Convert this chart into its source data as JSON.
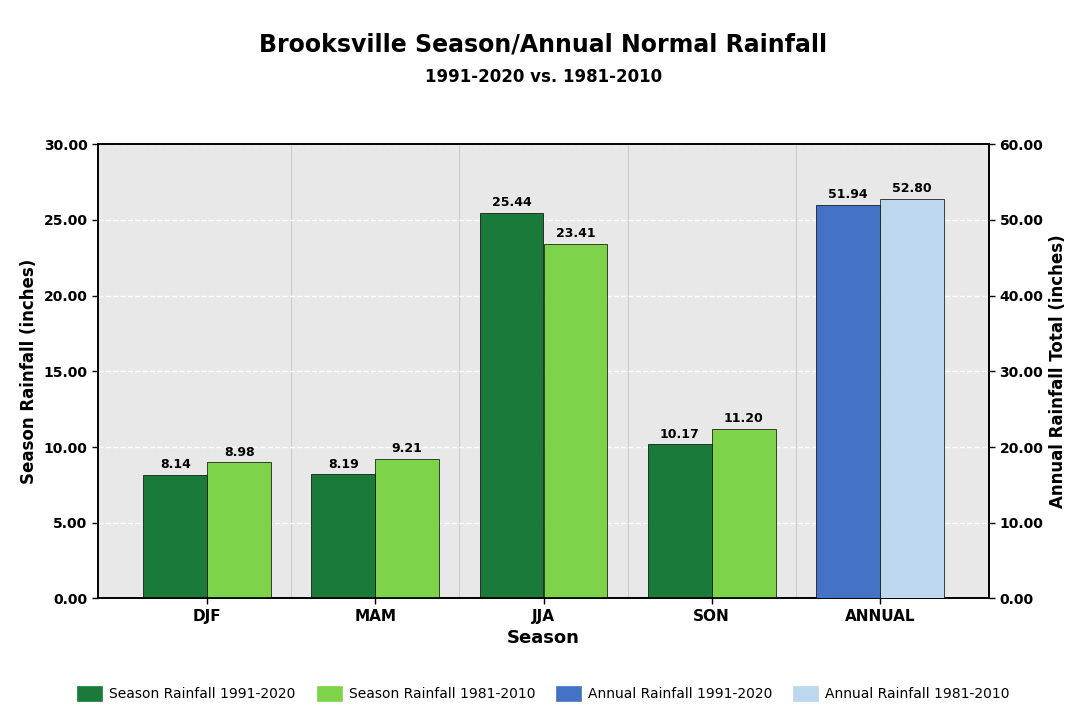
{
  "title": "Brooksville Season/Annual Normal Rainfall",
  "subtitle": "1991-2020 vs. 1981-2010",
  "xlabel": "Season",
  "ylabel_left": "Season Rainfall (inches)",
  "ylabel_right": "Annual Rainfall Total (inches)",
  "seasons": [
    "DJF",
    "MAM",
    "JJA",
    "SON",
    "ANNUAL"
  ],
  "season_1991_2020": [
    8.14,
    8.19,
    25.44,
    10.17,
    null
  ],
  "season_1981_2010": [
    8.98,
    9.21,
    23.41,
    11.2,
    null
  ],
  "annual_1991_2020": [
    null,
    null,
    null,
    null,
    51.94
  ],
  "annual_1981_2010": [
    null,
    null,
    null,
    null,
    52.8
  ],
  "ylim_left": [
    0,
    30
  ],
  "ylim_right": [
    0,
    60
  ],
  "yticks_left": [
    0.0,
    5.0,
    10.0,
    15.0,
    20.0,
    25.0,
    30.0
  ],
  "yticks_right": [
    0.0,
    10.0,
    20.0,
    30.0,
    40.0,
    50.0,
    60.0
  ],
  "color_season_1991": "#1a7a3a",
  "color_season_1981": "#7dd44a",
  "color_annual_1991": "#4472C4",
  "color_annual_1981": "#BDD7EE",
  "bar_width": 0.38,
  "background_color": "#E8E8E8",
  "grid_color": "#FFFFFF",
  "label_fontsize": 9,
  "label_season_1991": "Season Rainfall 1991-2020",
  "label_season_1981": "Season Rainfall 1981-2010",
  "label_annual_1991": "Annual Rainfall 1991-2020",
  "label_annual_1981": "Annual Rainfall 1981-2010"
}
